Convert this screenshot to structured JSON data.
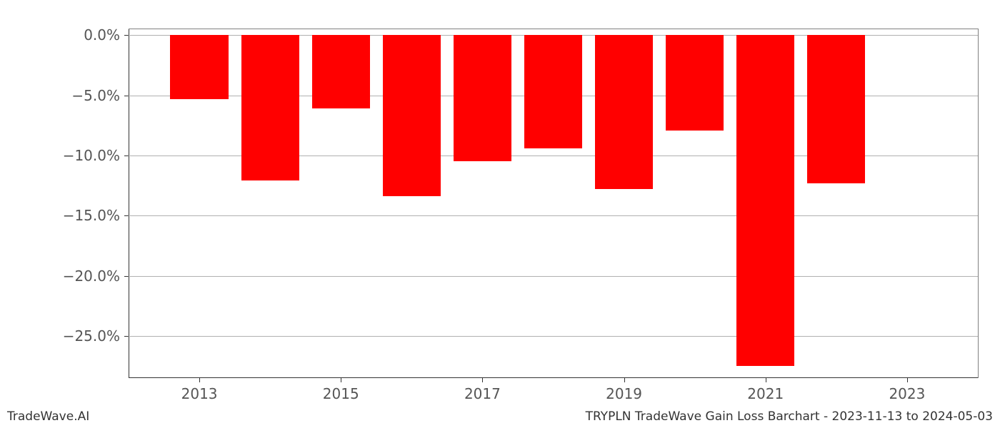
{
  "chart": {
    "type": "bar",
    "years": [
      2013,
      2014,
      2015,
      2016,
      2017,
      2018,
      2019,
      2020,
      2021,
      2022
    ],
    "values": [
      -5.3,
      -12.1,
      -6.1,
      -13.4,
      -10.5,
      -9.4,
      -12.8,
      -7.9,
      -27.5,
      -12.3
    ],
    "bar_color": "#ff0000",
    "bar_width_years": 0.82,
    "x_domain_min": 2012,
    "x_domain_max": 2024,
    "xtick_start": 2013,
    "xtick_step": 2,
    "xtick_end": 2023,
    "ylim_min": -28.5,
    "ylim_max": 0.5,
    "ytick_start": -25,
    "ytick_step": 5,
    "ytick_end": 0,
    "grid_color": "#b0b0b0",
    "tick_fontsize_px": 20,
    "tick_color": "#555555",
    "background_color": "#ffffff",
    "ytick_format_suffix": ".0%"
  },
  "footer": {
    "left": "TradeWave.AI",
    "right": "TRYPLN TradeWave Gain Loss Barchart - 2023-11-13 to 2024-05-03"
  }
}
